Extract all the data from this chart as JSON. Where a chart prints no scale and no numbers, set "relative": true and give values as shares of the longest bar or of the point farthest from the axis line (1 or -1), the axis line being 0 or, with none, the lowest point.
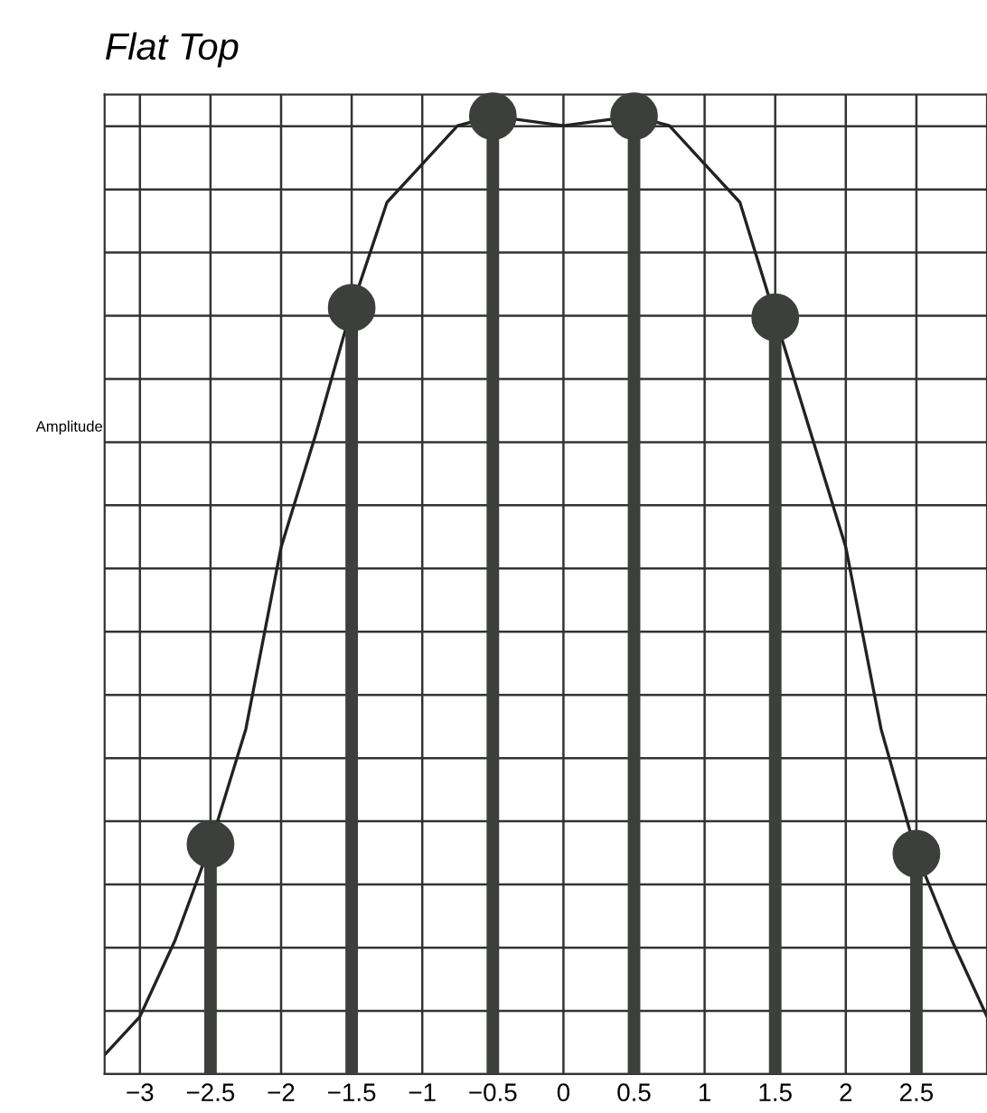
{
  "chart_data": {
    "type": "lollipop",
    "title": "Flat Top",
    "ylabel": "Amplitude",
    "relative": true,
    "xlim": [
      -3.25,
      3.0
    ],
    "xticks": [
      {
        "value": -3,
        "label": "−3"
      },
      {
        "value": -2.5,
        "label": "−2.5"
      },
      {
        "value": -2,
        "label": "−2"
      },
      {
        "value": -1.5,
        "label": "−1.5"
      },
      {
        "value": -1,
        "label": "−1"
      },
      {
        "value": -0.5,
        "label": "−0.5"
      },
      0,
      0.5,
      1,
      1.5,
      2,
      2.5
    ],
    "grid": true,
    "series": [
      {
        "marker": "circle",
        "color": "#3c3f3c",
        "x": [
          -2.5,
          -1.5,
          -0.5,
          0.5,
          1.5,
          2.5
        ],
        "values": [
          0.24,
          0.8,
          1,
          1,
          0.79,
          0.23
        ]
      },
      {
        "type": "line",
        "marker": "none",
        "color": "#222222",
        "line_style": "solid",
        "x": [
          -3.25,
          -3,
          -2.75,
          -2.5,
          -2.25,
          -2,
          -1.75,
          -1.5,
          -1.25,
          -1,
          -0.75,
          -0.5,
          0,
          0.5,
          0.75,
          1,
          1.25,
          1.5,
          1.75,
          2,
          2.25,
          2.5,
          2.75,
          3.0
        ],
        "values": [
          0.02,
          0.06,
          0.14,
          0.24,
          0.36,
          0.55,
          0.67,
          0.8,
          0.91,
          0.95,
          0.99,
          1,
          0.99,
          1,
          0.99,
          0.95,
          0.91,
          0.79,
          0.67,
          0.55,
          0.36,
          0.23,
          0.14,
          0.06
        ]
      }
    ]
  }
}
